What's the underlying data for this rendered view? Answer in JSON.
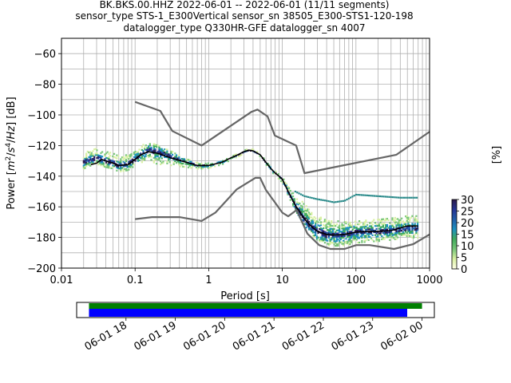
{
  "chart_data": [
    {
      "type": "heatmap",
      "title_lines": [
        "BK.BKS.00.HHZ   2022-06-01 -- 2022-06-01  (11/11 segments)",
        "sensor_type STS-1_E300Vertical sensor_sn 38505_E300-STS1-120-198",
        "datalogger_type Q330HR-GFE datalogger_sn 4007"
      ],
      "xlabel": "Period [s]",
      "ylabel_parts": [
        "Power [",
        "m",
        "2",
        "/",
        "s",
        "4",
        "/",
        "Hz",
        "] [dB]"
      ],
      "x_scale": "log",
      "xlim": [
        0.01,
        1000
      ],
      "ylim": [
        -200,
        -50
      ],
      "x_tick_labels": [
        {
          "v": 0.01,
          "t": "0.01"
        },
        {
          "v": 0.1,
          "t": "0.1"
        },
        {
          "v": 1,
          "t": "1"
        },
        {
          "v": 10,
          "t": "10"
        },
        {
          "v": 100,
          "t": "100"
        },
        {
          "v": 1000,
          "t": "1000"
        }
      ],
      "y_tick_labels": [
        {
          "v": -60,
          "t": "−60"
        },
        {
          "v": -80,
          "t": "−80"
        },
        {
          "v": -100,
          "t": "−100"
        },
        {
          "v": -120,
          "t": "−120"
        },
        {
          "v": -140,
          "t": "−140"
        },
        {
          "v": -160,
          "t": "−160"
        },
        {
          "v": -180,
          "t": "−180"
        },
        {
          "v": -200,
          "t": "−200"
        }
      ],
      "grid": true,
      "noise_models": {
        "color": "#666666",
        "high": [
          [
            0.1,
            -91.5
          ],
          [
            0.22,
            -97.4
          ],
          [
            0.32,
            -110.5
          ],
          [
            0.8,
            -120
          ],
          [
            3.8,
            -98
          ],
          [
            4.6,
            -96.5
          ],
          [
            6.3,
            -101
          ],
          [
            7.9,
            -113.5
          ],
          [
            15.4,
            -120
          ],
          [
            20,
            -138
          ],
          [
            354.8,
            -126
          ],
          [
            1000,
            -111
          ]
        ],
        "low": [
          [
            0.1,
            -168
          ],
          [
            0.17,
            -166.7
          ],
          [
            0.4,
            -166.7
          ],
          [
            0.8,
            -169.2
          ],
          [
            1.24,
            -163.7
          ],
          [
            2.4,
            -148.6
          ],
          [
            4.3,
            -141.1
          ],
          [
            5,
            -141.1
          ],
          [
            6,
            -149
          ],
          [
            10,
            -163.8
          ],
          [
            12,
            -166.2
          ],
          [
            15.6,
            -162.1
          ],
          [
            21.9,
            -177.5
          ],
          [
            31.6,
            -185
          ],
          [
            45,
            -187.5
          ],
          [
            70,
            -187.5
          ],
          [
            101,
            -185
          ],
          [
            154,
            -185
          ],
          [
            328,
            -187.5
          ],
          [
            600,
            -184.4
          ],
          [
            1000,
            -178
          ]
        ]
      },
      "median": {
        "color": "#000000",
        "points": [
          [
            0.025,
            -132.5
          ],
          [
            0.03,
            -131.5
          ],
          [
            0.035,
            -129
          ],
          [
            0.04,
            -130
          ],
          [
            0.05,
            -131.5
          ],
          [
            0.06,
            -133
          ],
          [
            0.08,
            -132.5
          ],
          [
            0.1,
            -129
          ],
          [
            0.12,
            -126
          ],
          [
            0.15,
            -124
          ],
          [
            0.2,
            -125
          ],
          [
            0.3,
            -128
          ],
          [
            0.5,
            -131
          ],
          [
            0.7,
            -133
          ],
          [
            1,
            -133
          ],
          [
            1.5,
            -131
          ],
          [
            2,
            -128
          ],
          [
            2.5,
            -126
          ],
          [
            3,
            -124
          ],
          [
            3.5,
            -123
          ],
          [
            4,
            -123.5
          ],
          [
            5,
            -126
          ],
          [
            6,
            -131
          ],
          [
            7,
            -135
          ],
          [
            8,
            -138
          ],
          [
            9,
            -140
          ],
          [
            10,
            -142
          ],
          [
            12,
            -150
          ],
          [
            15,
            -159
          ],
          [
            20,
            -168
          ],
          [
            25,
            -173
          ],
          [
            30,
            -176
          ],
          [
            40,
            -178
          ],
          [
            50,
            -178.5
          ],
          [
            70,
            -178
          ],
          [
            100,
            -176.5
          ],
          [
            150,
            -176
          ],
          [
            200,
            -176
          ],
          [
            300,
            -175.5
          ],
          [
            500,
            -172.5
          ],
          [
            700,
            -172.5
          ]
        ]
      },
      "main_band": {
        "points": [
          [
            0.02,
            -131
          ],
          [
            0.025,
            -129
          ],
          [
            0.03,
            -128
          ],
          [
            0.035,
            -129
          ],
          [
            0.04,
            -130
          ],
          [
            0.05,
            -131
          ],
          [
            0.06,
            -133
          ],
          [
            0.08,
            -132
          ],
          [
            0.1,
            -129
          ],
          [
            0.12,
            -126
          ],
          [
            0.15,
            -123
          ],
          [
            0.2,
            -124
          ],
          [
            0.3,
            -127
          ],
          [
            0.5,
            -131
          ],
          [
            0.7,
            -133
          ],
          [
            1,
            -133
          ],
          [
            1.5,
            -131
          ],
          [
            2,
            -128
          ],
          [
            2.5,
            -126
          ],
          [
            3,
            -124
          ],
          [
            3.5,
            -123
          ],
          [
            4,
            -123.5
          ],
          [
            5,
            -126
          ],
          [
            6,
            -131
          ],
          [
            7,
            -135
          ],
          [
            8,
            -138
          ],
          [
            9,
            -140
          ],
          [
            10,
            -142
          ],
          [
            12,
            -150
          ],
          [
            15,
            -159
          ],
          [
            20,
            -168
          ],
          [
            25,
            -173
          ],
          [
            30,
            -176
          ],
          [
            40,
            -178
          ],
          [
            50,
            -178.5
          ],
          [
            70,
            -178
          ],
          [
            100,
            -176.5
          ],
          [
            150,
            -176
          ],
          [
            200,
            -176
          ],
          [
            300,
            -175.5
          ],
          [
            500,
            -174
          ],
          [
            700,
            -174
          ]
        ],
        "spread_above": [
          [
            0.02,
            6
          ],
          [
            0.1,
            6
          ],
          [
            0.2,
            5
          ],
          [
            0.5,
            2.5
          ],
          [
            1,
            1.5
          ],
          [
            5,
            1
          ],
          [
            10,
            2
          ],
          [
            20,
            10
          ],
          [
            40,
            10
          ],
          [
            100,
            8
          ],
          [
            300,
            8
          ],
          [
            700,
            8
          ]
        ],
        "spread_below": [
          [
            0.02,
            4
          ],
          [
            0.1,
            4
          ],
          [
            0.2,
            8
          ],
          [
            0.5,
            3
          ],
          [
            1,
            1.5
          ],
          [
            5,
            1
          ],
          [
            10,
            2
          ],
          [
            20,
            4
          ],
          [
            40,
            7
          ],
          [
            100,
            7
          ],
          [
            300,
            6
          ],
          [
            700,
            6
          ]
        ]
      },
      "secondary_band": {
        "color": "#2a8a8a",
        "points": [
          [
            15,
            -150
          ],
          [
            20,
            -153
          ],
          [
            30,
            -155
          ],
          [
            40,
            -156
          ],
          [
            50,
            -157
          ],
          [
            70,
            -156
          ],
          [
            100,
            -152
          ],
          [
            200,
            -153
          ],
          [
            400,
            -154
          ],
          [
            700,
            -154
          ]
        ]
      },
      "colorbar": {
        "label": "[%]",
        "range": [
          0,
          30
        ],
        "tick_labels": [
          "0",
          "5",
          "10",
          "15",
          "20",
          "25",
          "30"
        ],
        "colors": [
          "#ffffe5",
          "#d9f0a3",
          "#78c679",
          "#41ab5d",
          "#1d91c0",
          "#225ea8",
          "#253494",
          "#2c1a4a"
        ]
      }
    },
    {
      "type": "timeline",
      "x_tick_labels": [
        "06-01 18",
        "06-01 19",
        "06-01 20",
        "06-01 21",
        "06-01 22",
        "06-01 23",
        "06-02 00"
      ],
      "tick_hours": [
        18,
        19,
        20,
        21,
        22,
        23,
        24
      ],
      "range_hours": [
        17.0,
        24.25
      ],
      "bars": [
        {
          "color": "#008000",
          "start": 17.25,
          "end": 24.0
        },
        {
          "color": "#0000ff",
          "start": 17.25,
          "end": 23.7
        }
      ]
    }
  ]
}
